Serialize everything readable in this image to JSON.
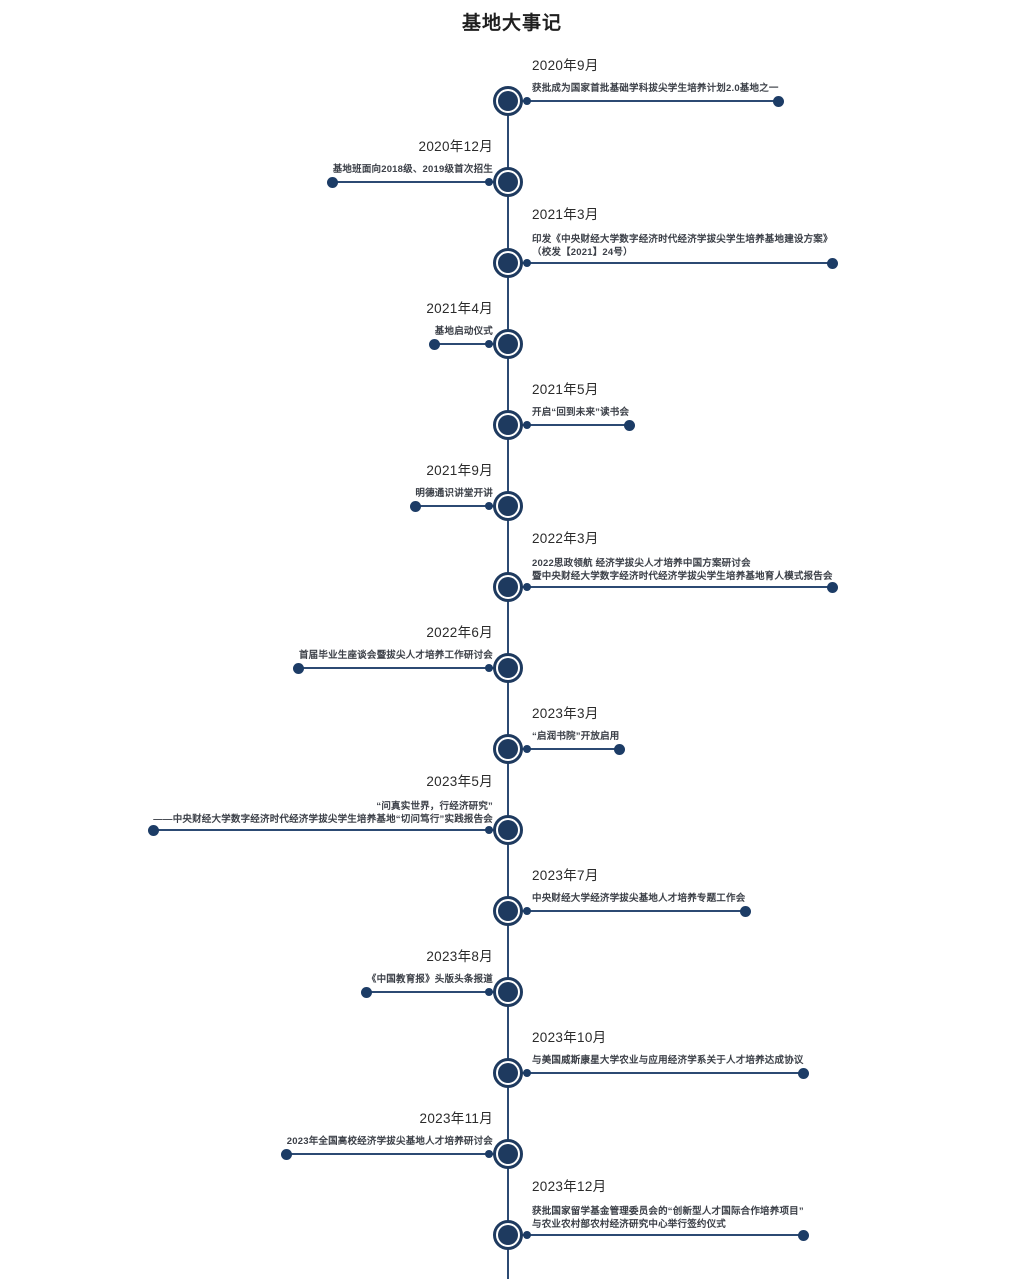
{
  "title": "基地大事记",
  "colors": {
    "navy": "#1e3a5f",
    "line": "#2c4a73",
    "dot": "#1c3c66",
    "title_text": "#1f1f1f",
    "date_text": "#2b2b2b",
    "desc_text": "#3c4048"
  },
  "timeline": {
    "events": [
      {
        "date": "2020年9月",
        "lines": [
          "获批成为国家首批基础学科拔尖学生培养计划2.0基地之一"
        ]
      },
      {
        "date": "2020年12月",
        "lines": [
          "基地班面向2018级、2019级首次招生"
        ]
      },
      {
        "date": "2021年3月",
        "lines": [
          "印发《中央财经大学数字经济时代经济学拔尖学生培养基地建设方案》",
          "（校发【2021】24号）"
        ]
      },
      {
        "date": "2021年4月",
        "lines": [
          "基地启动仪式"
        ]
      },
      {
        "date": "2021年5月",
        "lines": [
          "开启“回到未来”读书会"
        ]
      },
      {
        "date": "2021年9月",
        "lines": [
          "明德通识讲堂开讲"
        ]
      },
      {
        "date": "2022年3月",
        "lines": [
          "2022思政领航 经济学拔尖人才培养中国方案研讨会",
          "暨中央财经大学数字经济时代经济学拔尖学生培养基地育人模式报告会"
        ]
      },
      {
        "date": "2022年6月",
        "lines": [
          "首届毕业生座谈会暨拔尖人才培养工作研讨会"
        ]
      },
      {
        "date": "2023年3月",
        "lines": [
          "“启润书院”开放启用"
        ]
      },
      {
        "date": "2023年5月",
        "lines": [
          "“问真实世界，行经济研究”",
          "——中央财经大学数字经济时代经济学拔尖学生培养基地“切问笃行”实践报告会"
        ]
      },
      {
        "date": "2023年7月",
        "lines": [
          "中央财经大学经济学拔尖基地人才培养专题工作会"
        ]
      },
      {
        "date": "2023年8月",
        "lines": [
          "《中国教育报》头版头条报道"
        ]
      },
      {
        "date": "2023年10月",
        "lines": [
          "与美国威斯康星大学农业与应用经济学系关于人才培养达成协议"
        ]
      },
      {
        "date": "2023年11月",
        "lines": [
          "2023年全国高校经济学拔尖基地人才培养研讨会"
        ]
      },
      {
        "date": "2023年12月",
        "lines": [
          "获批国家留学基金管理委员会的“创新型人才国际合作培养项目”",
          "与农业农村部农村经济研究中心举行签约仪式"
        ]
      }
    ]
  }
}
